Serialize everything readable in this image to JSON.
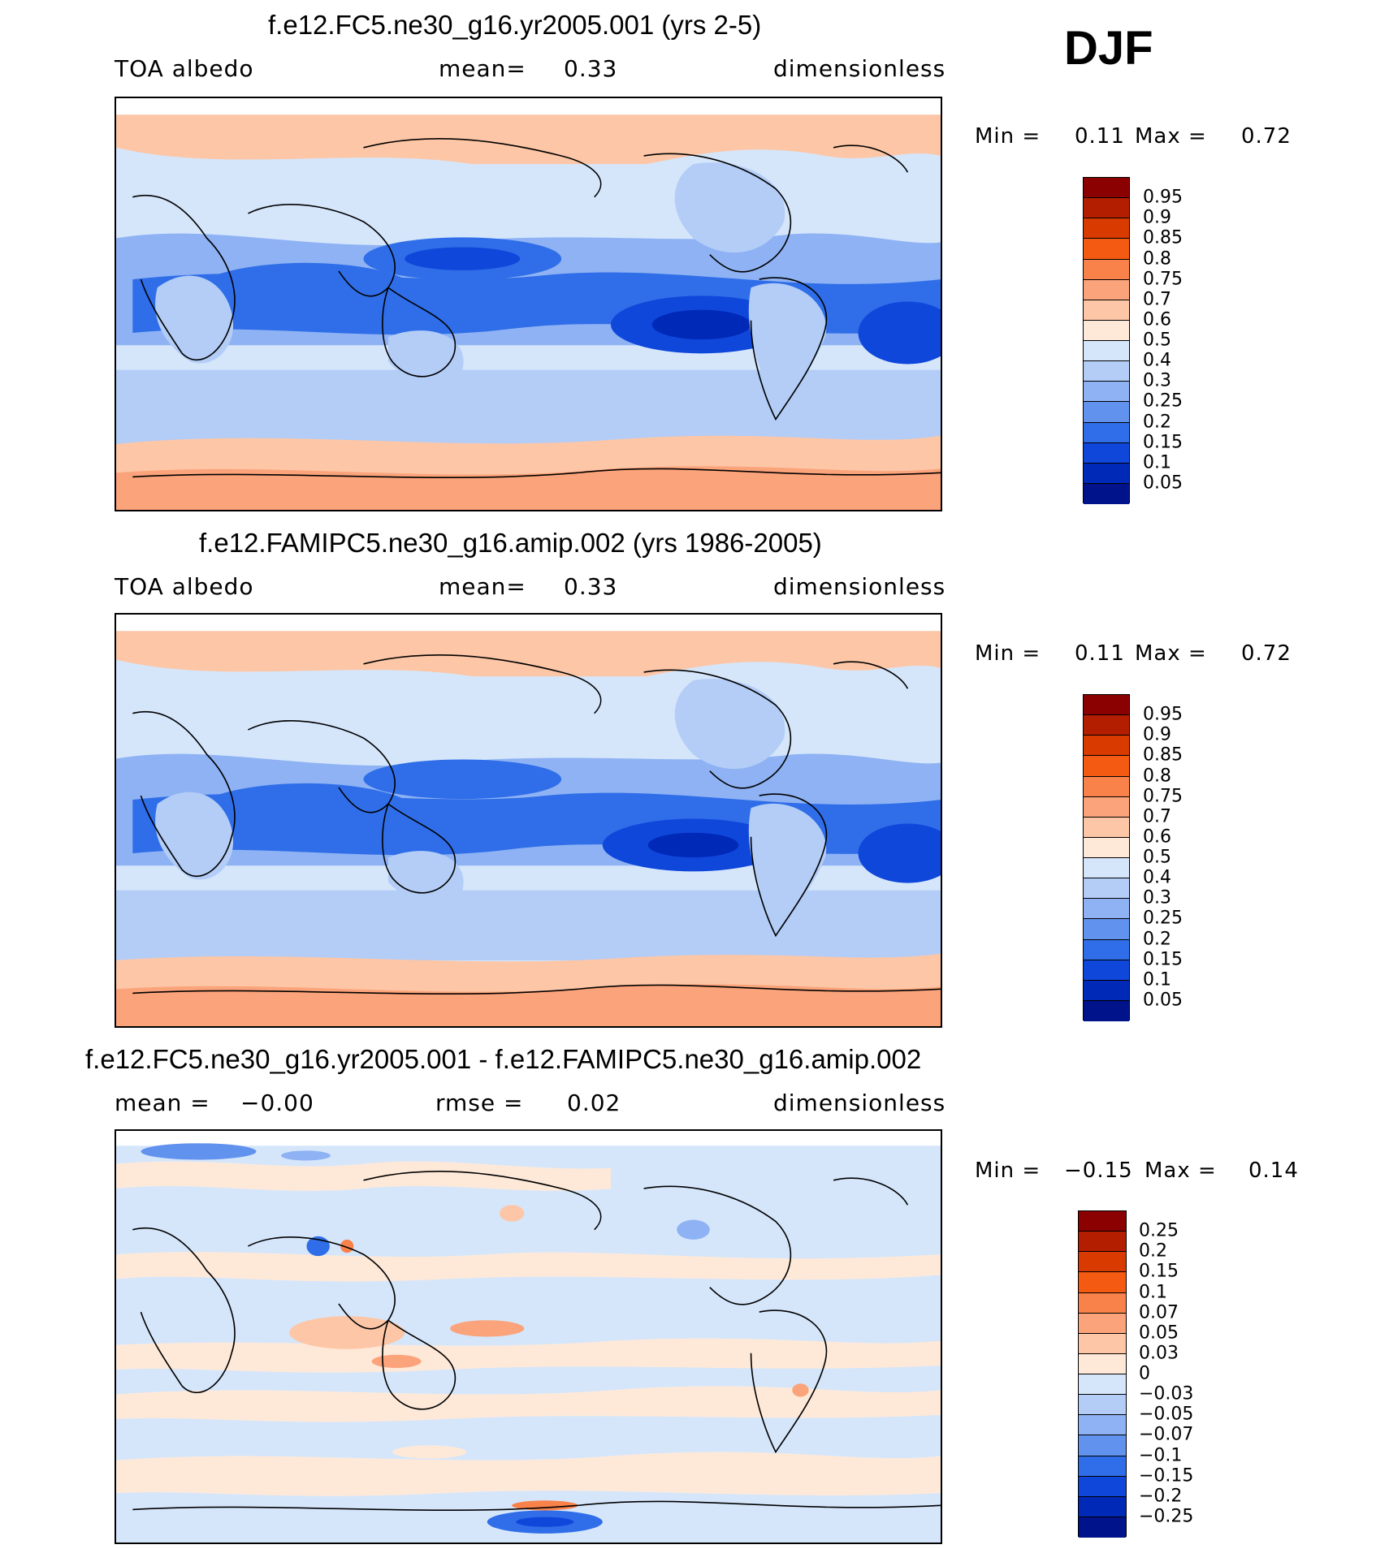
{
  "season": "DJF",
  "panels": [
    {
      "title": "f.e12.FC5.ne30_g16.yr2005.001 (yrs 2-5)",
      "left_label": "TOA albedo",
      "mid_label": "mean=",
      "mid_value": "0.33",
      "right_label": "dimensionless",
      "min_label": "Min =",
      "min_value": "0.11",
      "max_label": "Max =",
      "max_value": "0.72"
    },
    {
      "title": "f.e12.FAMIPC5.ne30_g16.amip.002 (yrs 1986-2005)",
      "left_label": "TOA albedo",
      "mid_label": "mean=",
      "mid_value": "0.33",
      "right_label": "dimensionless",
      "min_label": "Min =",
      "min_value": "0.11",
      "max_label": "Max =",
      "max_value": "0.72"
    },
    {
      "title": "f.e12.FC5.ne30_g16.yr2005.001 - f.e12.FAMIPC5.ne30_g16.amip.002",
      "left_label": "mean =",
      "left_value": "−0.00",
      "mid_label": "rmse =",
      "mid_value": "0.02",
      "right_label": "dimensionless",
      "min_label": "Min =",
      "min_value": "−0.15",
      "max_label": "Max =",
      "max_value": "0.14"
    }
  ],
  "colorbars": {
    "abs": {
      "labels": [
        "0.95",
        "0.9",
        "0.85",
        "0.8",
        "0.75",
        "0.7",
        "0.6",
        "0.5",
        "0.4",
        "0.3",
        "0.25",
        "0.2",
        "0.15",
        "0.1",
        "0.05"
      ],
      "colors": [
        "#8b0000",
        "#b41e00",
        "#d83a00",
        "#f45a12",
        "#f9824a",
        "#fba37a",
        "#fdc6a6",
        "#fee9d9",
        "#d5e6fb",
        "#b3cdf7",
        "#8eb2f3",
        "#6192ee",
        "#2f6ee8",
        "#0f47db",
        "#0029b8",
        "#00138a"
      ]
    },
    "diff": {
      "labels": [
        "0.25",
        "0.2",
        "0.15",
        "0.1",
        "0.07",
        "0.05",
        "0.03",
        "0",
        "−0.03",
        "−0.05",
        "−0.07",
        "−0.1",
        "−0.15",
        "−0.2",
        "−0.25"
      ],
      "colors": [
        "#8b0000",
        "#b41e00",
        "#d83a00",
        "#f45a12",
        "#f9824a",
        "#fba37a",
        "#fdc6a6",
        "#fee9d9",
        "#d5e6fb",
        "#b3cdf7",
        "#8eb2f3",
        "#6192ee",
        "#2f6ee8",
        "#0f47db",
        "#0029b8",
        "#00138a"
      ]
    }
  }
}
